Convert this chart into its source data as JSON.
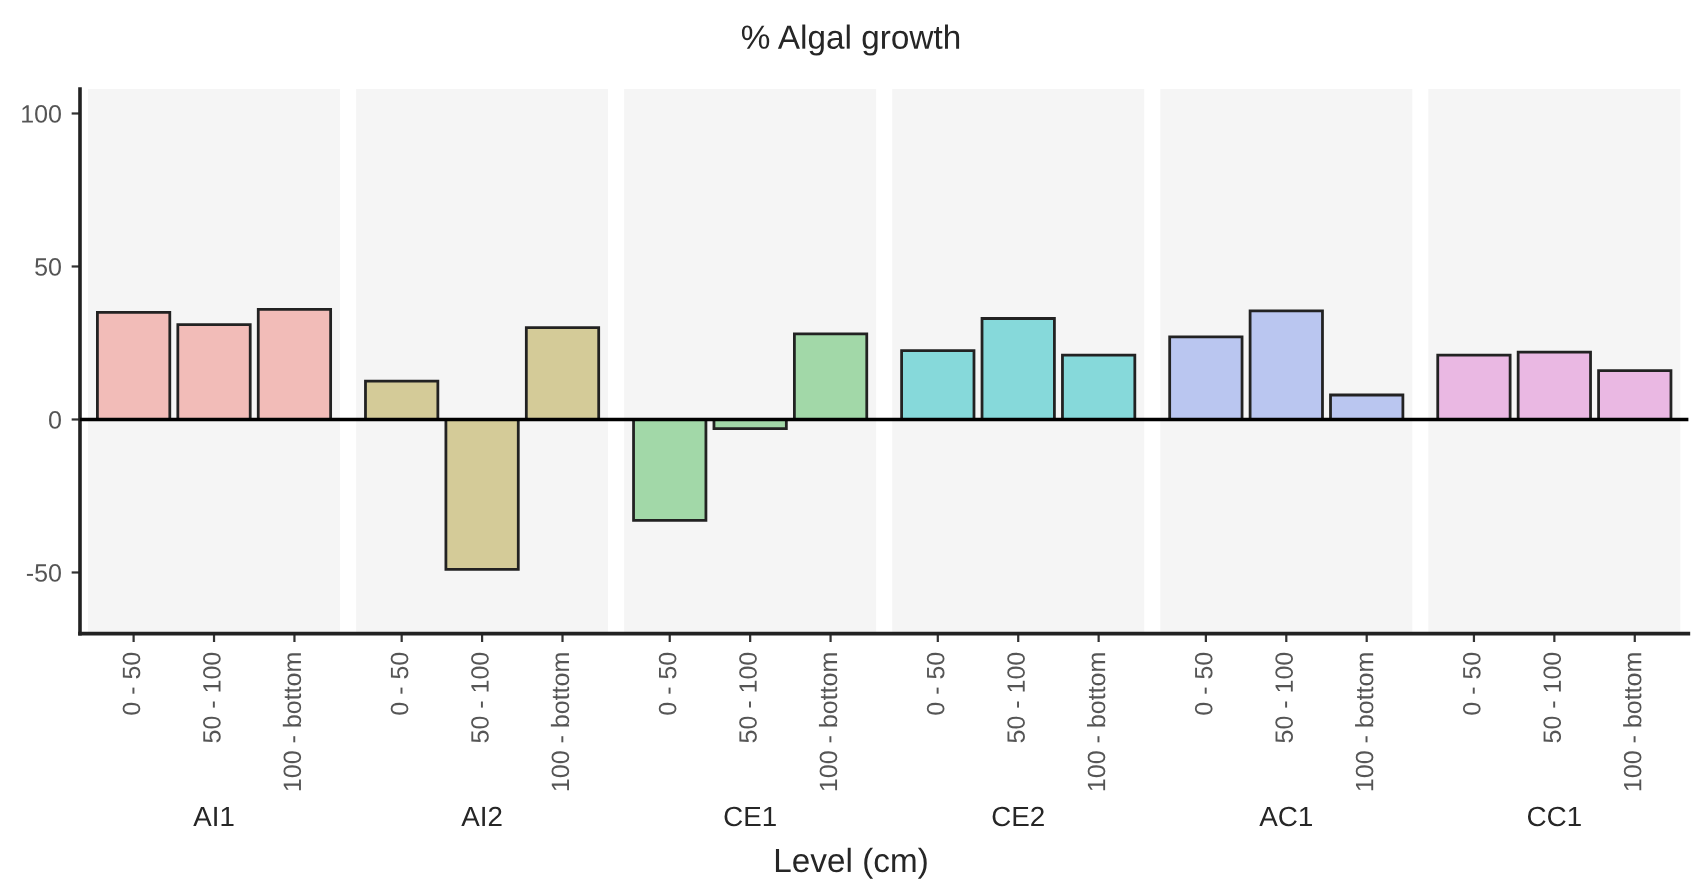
{
  "chart_data": {
    "type": "bar",
    "title": "% Algal growth",
    "xlabel": "Level (cm)",
    "categories": [
      "AI1",
      "AI2",
      "CE1",
      "CE2",
      "AC1",
      "CC1"
    ],
    "series": [
      {
        "name": "0 - 50",
        "colors": [
          "#f2bcb8",
          "#d4cb98",
          "#a2d8a8",
          "#86d9da",
          "#bac6f0",
          "#eab8e3"
        ],
        "values": [
          35,
          12.5,
          -33,
          22.5,
          27,
          21
        ]
      },
      {
        "name": "50 - 100",
        "colors": [
          "#f2bcb8",
          "#d4cb98",
          "#a2d8a8",
          "#86d9da",
          "#bac6f0",
          "#eab8e3"
        ],
        "values": [
          31,
          -49,
          -3,
          33,
          35.5,
          22
        ]
      },
      {
        "name": "100 - bottom",
        "colors": [
          "#f2bcb8",
          "#d4cb98",
          "#a2d8a8",
          "#86d9da",
          "#bac6f0",
          "#eab8e3"
        ],
        "values": [
          36,
          30,
          28,
          21,
          8,
          16
        ]
      }
    ],
    "ylim": [
      -70,
      108
    ],
    "yticks": [
      -50,
      0,
      50,
      100
    ],
    "ref_lines": [
      {
        "axis": "y",
        "value": 0,
        "color": "#000000"
      }
    ],
    "grid": false
  }
}
